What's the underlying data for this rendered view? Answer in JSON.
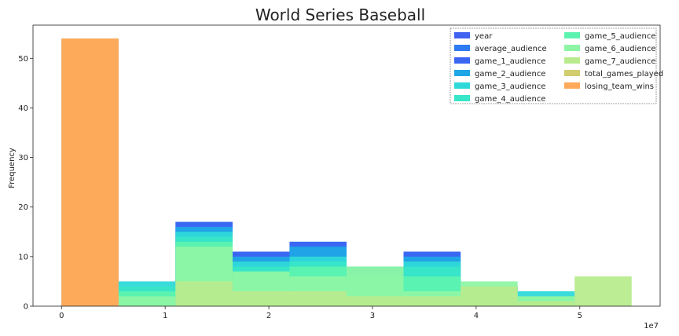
{
  "chart_data": {
    "type": "histogram",
    "title": "World Series Baseball",
    "ylabel": "Frequency",
    "xlabel": "",
    "x_offset_label": "1e7",
    "xlim": [
      -2750000,
      57750000
    ],
    "ylim": [
      0,
      56.7
    ],
    "x_ticks": [
      {
        "value": 0,
        "label": "0"
      },
      {
        "value": 10000000,
        "label": "1"
      },
      {
        "value": 20000000,
        "label": "2"
      },
      {
        "value": 30000000,
        "label": "3"
      },
      {
        "value": 40000000,
        "label": "4"
      },
      {
        "value": 50000000,
        "label": "5"
      }
    ],
    "y_ticks": [
      {
        "value": 0,
        "label": "0"
      },
      {
        "value": 10,
        "label": "10"
      },
      {
        "value": 20,
        "label": "20"
      },
      {
        "value": 30,
        "label": "30"
      },
      {
        "value": 40,
        "label": "40"
      },
      {
        "value": 50,
        "label": "50"
      }
    ],
    "bins": [
      0,
      5500000,
      11000000,
      16500000,
      22000000,
      27500000,
      33000000,
      38500000,
      44000000,
      49500000,
      55000000
    ],
    "grid": false,
    "legend_position": "top-right",
    "legend_columns": 2,
    "series": [
      {
        "name": "year",
        "color": "#4062f0",
        "counts": [
          54,
          0,
          0,
          0,
          0,
          0,
          0,
          0,
          0,
          0
        ]
      },
      {
        "name": "average_audience",
        "color": "#2f7bf4",
        "counts": [
          0,
          2,
          17,
          11,
          13,
          6,
          11,
          4,
          1,
          0
        ]
      },
      {
        "name": "game_1_audience",
        "color": "#3b66f2",
        "counts": [
          0,
          2,
          17,
          11,
          13,
          6,
          11,
          4,
          1,
          0
        ]
      },
      {
        "name": "game_2_audience",
        "color": "#1fa6e6",
        "counts": [
          0,
          2,
          16,
          10,
          12,
          8,
          10,
          4,
          1,
          0
        ]
      },
      {
        "name": "game_3_audience",
        "color": "#2fd9d9",
        "counts": [
          0,
          5,
          15,
          9,
          10,
          7,
          9,
          4,
          3,
          0
        ]
      },
      {
        "name": "game_4_audience",
        "color": "#38e6c8",
        "counts": [
          0,
          4,
          14,
          8,
          9,
          6,
          8,
          3,
          2,
          0
        ]
      },
      {
        "name": "game_5_audience",
        "color": "#5cf3b0",
        "counts": [
          0,
          3,
          13,
          7,
          8,
          6,
          6,
          3,
          2,
          0
        ]
      },
      {
        "name": "game_6_audience",
        "color": "#8ef5a5",
        "counts": [
          0,
          2,
          12,
          7,
          6,
          8,
          3,
          5,
          2,
          0
        ]
      },
      {
        "name": "game_7_audience",
        "color": "#b8eb8e",
        "counts": [
          0,
          0,
          5,
          3,
          3,
          2,
          2,
          4,
          1,
          6
        ]
      },
      {
        "name": "total_games_played",
        "color": "#d2cd6e",
        "counts": [
          54,
          0,
          0,
          0,
          0,
          0,
          0,
          0,
          0,
          0
        ]
      },
      {
        "name": "losing_team_wins",
        "color": "#ffa95a",
        "counts": [
          54,
          0,
          0,
          0,
          0,
          0,
          0,
          0,
          0,
          0
        ]
      }
    ]
  }
}
